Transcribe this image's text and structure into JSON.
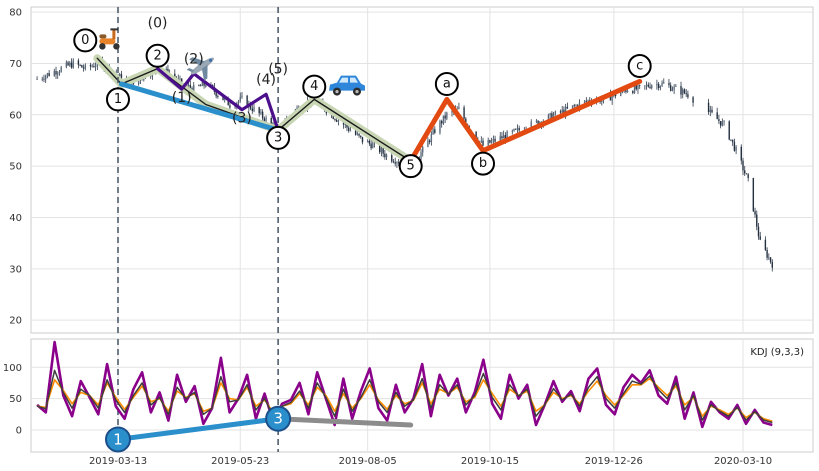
{
  "chart_data": [
    {
      "type": "candlestick",
      "title": "",
      "xlabel": "",
      "ylabel": "",
      "ylim": [
        17.5,
        81
      ],
      "x_ticks": [
        "2019-03-13",
        "2019-05-23",
        "2019-08-05",
        "2019-10-15",
        "2019-12-26",
        "2020-03-10"
      ],
      "y_ticks": [
        20,
        30,
        40,
        50,
        60,
        70,
        80
      ],
      "grid": true,
      "price_trend": [
        [
          "2019-01-25",
          67
        ],
        [
          "2019-02-01",
          68
        ],
        [
          "2019-02-08",
          69
        ],
        [
          "2019-02-15",
          70
        ],
        [
          "2019-02-22",
          69
        ],
        [
          "2019-03-01",
          70
        ],
        [
          "2019-03-08",
          69
        ],
        [
          "2019-03-15",
          67
        ],
        [
          "2019-03-22",
          66
        ],
        [
          "2019-03-29",
          68
        ],
        [
          "2019-04-05",
          69
        ],
        [
          "2019-04-12",
          68
        ],
        [
          "2019-04-19",
          66
        ],
        [
          "2019-04-26",
          65
        ],
        [
          "2019-05-03",
          66
        ],
        [
          "2019-05-10",
          64
        ],
        [
          "2019-05-17",
          62
        ],
        [
          "2019-05-24",
          63
        ],
        [
          "2019-05-31",
          61
        ],
        [
          "2019-06-07",
          59
        ],
        [
          "2019-06-14",
          57
        ],
        [
          "2019-06-21",
          60
        ],
        [
          "2019-06-28",
          62
        ],
        [
          "2019-07-05",
          63
        ],
        [
          "2019-07-12",
          61
        ],
        [
          "2019-07-19",
          59
        ],
        [
          "2019-07-26",
          57
        ],
        [
          "2019-08-02",
          55
        ],
        [
          "2019-08-09",
          54
        ],
        [
          "2019-08-16",
          52
        ],
        [
          "2019-08-23",
          51
        ],
        [
          "2019-08-30",
          50
        ],
        [
          "2019-09-06",
          53
        ],
        [
          "2019-09-13",
          57
        ],
        [
          "2019-09-20",
          60
        ],
        [
          "2019-09-27",
          61
        ],
        [
          "2019-10-04",
          57
        ],
        [
          "2019-10-11",
          54
        ],
        [
          "2019-10-18",
          55
        ],
        [
          "2019-10-25",
          56
        ],
        [
          "2019-11-01",
          57
        ],
        [
          "2019-11-08",
          58
        ],
        [
          "2019-11-15",
          59
        ],
        [
          "2019-11-22",
          60
        ],
        [
          "2019-11-29",
          61
        ],
        [
          "2019-12-06",
          62
        ],
        [
          "2019-12-13",
          63
        ],
        [
          "2019-12-20",
          63
        ],
        [
          "2019-12-27",
          64
        ],
        [
          "2020-01-03",
          65
        ],
        [
          "2020-01-10",
          65
        ],
        [
          "2020-01-17",
          66
        ],
        [
          "2020-01-24",
          66
        ],
        [
          "2020-01-31",
          65
        ],
        [
          "2020-02-07",
          64
        ],
        [
          "2020-02-14",
          62
        ],
        [
          "2020-02-21",
          60
        ],
        [
          "2020-02-28",
          58
        ],
        [
          "2020-03-06",
          53
        ],
        [
          "2020-03-13",
          47
        ],
        [
          "2020-03-20",
          35
        ],
        [
          "2020-03-27",
          31
        ]
      ],
      "wave_lines": [
        {
          "color": "#c8d6b4",
          "points": [
            [
              "2019-03-01",
              71
            ],
            [
              "2019-03-15",
              66
            ],
            [
              "2019-04-05",
              69
            ],
            [
              "2019-05-03",
              62
            ],
            [
              "2019-06-14",
              57
            ],
            [
              "2019-07-05",
              63
            ],
            [
              "2019-08-30",
              51
            ]
          ]
        },
        {
          "color": "#1b1b1b",
          "points": [
            [
              "2019-03-01",
              71
            ],
            [
              "2019-03-15",
              66
            ],
            [
              "2019-04-05",
              69
            ],
            [
              "2019-05-03",
              62
            ],
            [
              "2019-06-14",
              57
            ],
            [
              "2019-07-05",
              63
            ],
            [
              "2019-08-30",
              51
            ]
          ]
        },
        {
          "color": "#2b8fcc",
          "points": [
            [
              "2019-03-15",
              66
            ],
            [
              "2019-06-14",
              57
            ]
          ]
        },
        {
          "color": "#4b0f8c",
          "points": [
            [
              "2019-04-05",
              69
            ],
            [
              "2019-04-19",
              65
            ],
            [
              "2019-04-26",
              68
            ],
            [
              "2019-05-24",
              61
            ],
            [
              "2019-06-07",
              64
            ],
            [
              "2019-06-14",
              57
            ]
          ]
        },
        {
          "color": "#e24a12",
          "points": [
            [
              "2019-08-30",
              51
            ],
            [
              "2019-09-20",
              63
            ],
            [
              "2019-10-11",
              53
            ],
            [
              "2020-01-10",
              66.5
            ]
          ]
        }
      ],
      "wave_markers": [
        {
          "label": "0",
          "x": "2019-02-22",
          "y": 74.5
        },
        {
          "label": "1",
          "x": "2019-03-13",
          "y": 63
        },
        {
          "label": "2",
          "x": "2019-04-05",
          "y": 71.5
        },
        {
          "label": "3",
          "x": "2019-06-14",
          "y": 55.5
        },
        {
          "label": "4",
          "x": "2019-07-05",
          "y": 65.5
        },
        {
          "label": "5",
          "x": "2019-08-30",
          "y": 50
        },
        {
          "label": "a",
          "x": "2019-09-20",
          "y": 66
        },
        {
          "label": "b",
          "x": "2019-10-11",
          "y": 50.5
        },
        {
          "label": "c",
          "x": "2020-01-10",
          "y": 69.5
        }
      ],
      "wave_annotations": [
        {
          "label": "(0)",
          "x": "2019-04-05",
          "y": 77
        },
        {
          "label": "(1)",
          "x": "2019-04-19",
          "y": 62.5
        },
        {
          "label": "(2)",
          "x": "2019-04-26",
          "y": 70
        },
        {
          "label": "(3)",
          "x": "2019-05-24",
          "y": 58.5
        },
        {
          "label": "(4)",
          "x": "2019-06-07",
          "y": 66
        },
        {
          "label": "(5)",
          "x": "2019-06-14",
          "y": 68
        }
      ],
      "icons": [
        {
          "name": "scooter-icon",
          "x": "2019-03-08",
          "y": 74.5
        },
        {
          "name": "airplane-icon",
          "x": "2019-05-01",
          "y": 69.5
        },
        {
          "name": "car-icon",
          "x": "2019-07-24",
          "y": 65.5
        }
      ],
      "dashed_verticals": [
        "2019-03-13",
        "2019-06-14"
      ]
    },
    {
      "type": "line",
      "title": "",
      "legend_label": "KDJ (9,3,3)",
      "ylim": [
        -35,
        145
      ],
      "y_ticks": [
        0,
        50,
        100
      ],
      "grid": true,
      "series": [
        {
          "key": "J",
          "color": "#8b008b",
          "values": [
            40,
            28,
            140,
            55,
            22,
            78,
            52,
            25,
            105,
            38,
            18,
            65,
            92,
            28,
            60,
            15,
            88,
            45,
            70,
            10,
            35,
            115,
            28,
            50,
            88,
            18,
            58,
            12,
            42,
            48,
            75,
            25,
            92,
            50,
            8,
            82,
            18,
            62,
            98,
            35,
            15,
            72,
            28,
            50,
            105,
            22,
            88,
            55,
            82,
            28,
            60,
            112,
            42,
            18,
            88,
            50,
            72,
            8,
            40,
            78,
            45,
            62,
            30,
            82,
            98,
            40,
            25,
            68,
            88,
            75,
            95,
            55,
            42,
            85,
            18,
            60,
            5,
            45,
            28,
            18,
            40,
            10,
            32,
            12,
            8
          ]
        },
        {
          "key": "D",
          "color": "#ff8c00",
          "values": [
            38,
            36,
            80,
            63,
            42,
            60,
            55,
            40,
            75,
            52,
            33,
            52,
            70,
            45,
            50,
            30,
            62,
            52,
            58,
            30,
            35,
            75,
            50,
            48,
            68,
            38,
            48,
            28,
            38,
            42,
            58,
            40,
            68,
            55,
            30,
            58,
            35,
            50,
            72,
            48,
            33,
            55,
            42,
            47,
            75,
            42,
            65,
            58,
            68,
            45,
            52,
            80,
            58,
            38,
            65,
            55,
            62,
            30,
            40,
            60,
            50,
            55,
            42,
            62,
            78,
            55,
            40,
            55,
            72,
            72,
            82,
            68,
            55,
            70,
            40,
            52,
            22,
            38,
            32,
            25,
            35,
            20,
            28,
            18,
            14
          ]
        },
        {
          "key": "K",
          "color": "#3d3d3d",
          "values": [
            38,
            34,
            95,
            60,
            35,
            65,
            55,
            35,
            80,
            48,
            28,
            55,
            75,
            40,
            52,
            25,
            68,
            50,
            60,
            25,
            35,
            85,
            45,
            48,
            72,
            32,
            50,
            22,
            38,
            44,
            62,
            35,
            75,
            52,
            22,
            65,
            30,
            52,
            80,
            45,
            28,
            60,
            38,
            48,
            82,
            35,
            72,
            57,
            72,
            40,
            55,
            90,
            52,
            32,
            72,
            54,
            65,
            22,
            40,
            66,
            48,
            57,
            38,
            68,
            85,
            50,
            35,
            58,
            78,
            73,
            86,
            64,
            50,
            75,
            32,
            55,
            16,
            40,
            30,
            22,
            36,
            16,
            29,
            16,
            12
          ]
        }
      ],
      "trend_lines": [
        {
          "color": "#2b8fcc",
          "points": [
            [
              "2019-03-13",
              -15
            ],
            [
              "2019-06-14",
              18
            ]
          ]
        },
        {
          "color": "#8c8c8c",
          "points": [
            [
              "2019-06-14",
              18
            ],
            [
              "2019-08-30",
              8
            ]
          ]
        }
      ],
      "markers": [
        {
          "label": "1",
          "x": "2019-03-13",
          "y": -15,
          "color": "#2b8fcc"
        },
        {
          "label": "3",
          "x": "2019-06-14",
          "y": 18,
          "color": "#2b8fcc"
        }
      ]
    }
  ]
}
